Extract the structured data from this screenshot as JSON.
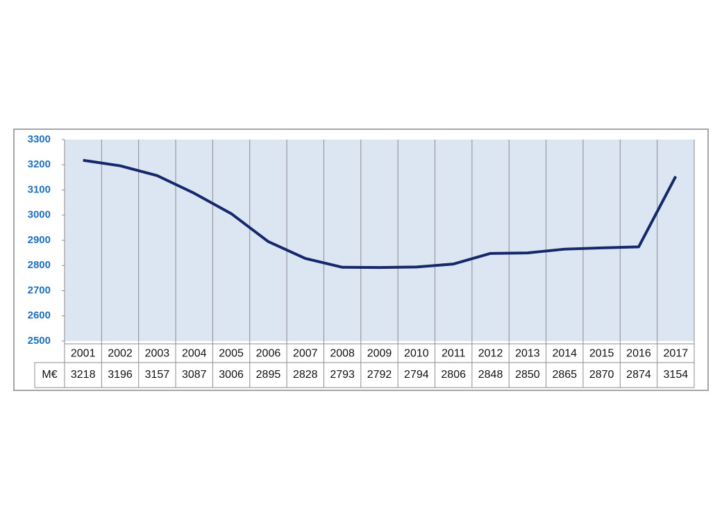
{
  "chart_data": {
    "type": "line",
    "categories": [
      "2001",
      "2002",
      "2003",
      "2004",
      "2005",
      "2006",
      "2007",
      "2008",
      "2009",
      "2010",
      "2011",
      "2012",
      "2013",
      "2014",
      "2015",
      "2016",
      "2017"
    ],
    "series": [
      {
        "name": "M€",
        "color": "#14286b",
        "values": [
          3218,
          3196,
          3157,
          3087,
          3006,
          2895,
          2828,
          2793,
          2792,
          2794,
          2806,
          2848,
          2850,
          2865,
          2870,
          2874,
          3154
        ]
      }
    ],
    "ylim": [
      2500,
      3300
    ],
    "yticks": [
      2500,
      2600,
      2700,
      2800,
      2900,
      3000,
      3100,
      3200,
      3300
    ],
    "grid": true,
    "plot_background": "#dce6f2"
  }
}
